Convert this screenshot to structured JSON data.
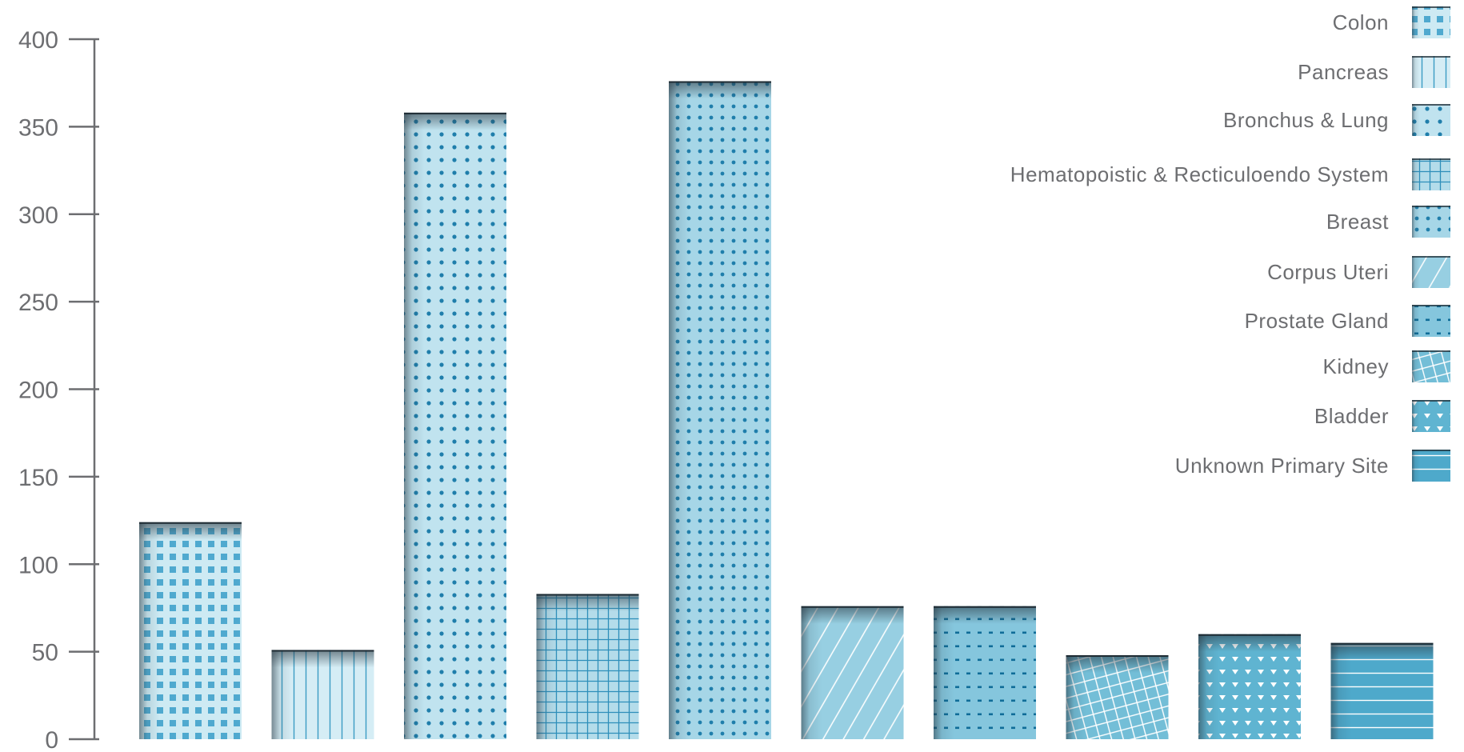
{
  "chart_data": {
    "type": "bar",
    "title": "",
    "xlabel": "",
    "ylabel": "",
    "ylim": [
      0,
      400
    ],
    "yticks": [
      0,
      50,
      100,
      150,
      200,
      250,
      300,
      350,
      400
    ],
    "grid": false,
    "legend_position": "top-right",
    "categories": [
      "Colon",
      "Pancreas",
      "Bronchus & Lung",
      "Hematopoistic & Recticuloendo System",
      "Breast",
      "Corpus Uteri",
      "Prostate Gland",
      "Kidney",
      "Bladder",
      "Unknown Primary Site"
    ],
    "values": [
      124,
      51,
      358,
      83,
      376,
      76,
      76,
      48,
      60,
      55
    ],
    "patterns": [
      "squares",
      "vlines",
      "dots",
      "grid",
      "dots-dense",
      "diagonal",
      "dashes",
      "crosshatch",
      "triangles",
      "hlines"
    ],
    "colors": [
      "#cdeaf3",
      "#d5edf5",
      "#c0e3ef",
      "#b4dcea",
      "#a6d6e7",
      "#97cfe2",
      "#85c6dd",
      "#73bed7",
      "#5fb4d1",
      "#4ea9cb"
    ],
    "mark_color": "#3a9cc4",
    "dot_color": "#1f7eab",
    "axis_color": "#6d6e71"
  }
}
